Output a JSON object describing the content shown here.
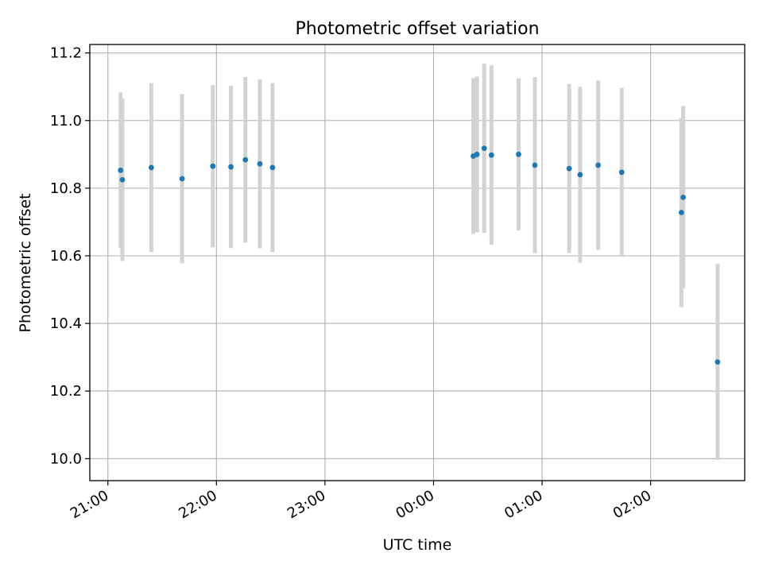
{
  "chart_data": {
    "type": "scatter",
    "title": "Photometric offset variation",
    "xlabel": "UTC time",
    "ylabel": "Photometric offset",
    "x_axis_type": "time",
    "x_tick_labels": [
      "21:00",
      "22:00",
      "23:00",
      "00:00",
      "01:00",
      "02:00"
    ],
    "y_tick_labels": [
      "10.0",
      "10.2",
      "10.4",
      "10.6",
      "10.8",
      "11.0",
      "11.2"
    ],
    "ylim": [
      9.935,
      11.225
    ],
    "xlim": [
      "20:50",
      "26:52"
    ],
    "grid": true,
    "colors": {
      "point": "#1f77b4",
      "errorbar": "#d3d3d3",
      "grid": "#b0b0b0"
    },
    "series": [
      {
        "points": [
          {
            "x": "21:07",
            "y": 10.853,
            "err": 0.23
          },
          {
            "x": "21:08",
            "y": 10.825,
            "err": 0.24
          },
          {
            "x": "21:24",
            "y": 10.861,
            "err": 0.25
          },
          {
            "x": "21:41",
            "y": 10.828,
            "err": 0.25
          },
          {
            "x": "21:58",
            "y": 10.865,
            "err": 0.24
          },
          {
            "x": "22:08",
            "y": 10.863,
            "err": 0.24
          },
          {
            "x": "22:16",
            "y": 10.884,
            "err": 0.245
          },
          {
            "x": "22:24",
            "y": 10.872,
            "err": 0.25
          },
          {
            "x": "22:31",
            "y": 10.861,
            "err": 0.25
          },
          {
            "x": "00:22",
            "y": 10.895,
            "err": 0.23
          },
          {
            "x": "00:24",
            "y": 10.9,
            "err": 0.23
          },
          {
            "x": "00:28",
            "y": 10.918,
            "err": 0.25
          },
          {
            "x": "00:32",
            "y": 10.898,
            "err": 0.265
          },
          {
            "x": "00:47",
            "y": 10.9,
            "err": 0.225
          },
          {
            "x": "00:56",
            "y": 10.868,
            "err": 0.26
          },
          {
            "x": "01:15",
            "y": 10.858,
            "err": 0.25
          },
          {
            "x": "01:21",
            "y": 10.84,
            "err": 0.26
          },
          {
            "x": "01:31",
            "y": 10.868,
            "err": 0.25
          },
          {
            "x": "01:44",
            "y": 10.847,
            "err": 0.25
          },
          {
            "x": "02:17",
            "y": 10.728,
            "err": 0.28
          },
          {
            "x": "02:18",
            "y": 10.773,
            "err": 0.27
          },
          {
            "x": "02:37",
            "y": 10.286,
            "err": 0.29
          }
        ]
      }
    ]
  }
}
